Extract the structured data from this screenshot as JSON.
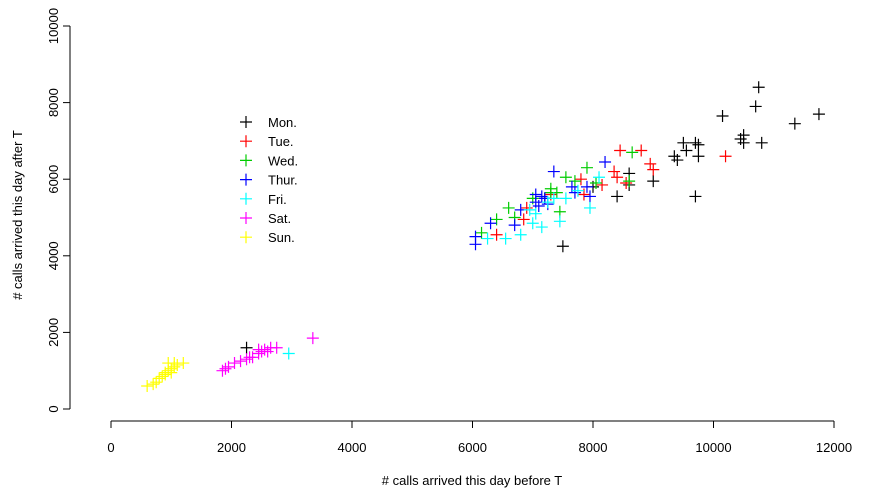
{
  "chart_data": {
    "type": "scatter",
    "marker": "plus",
    "xlabel": "# calls arrived this day before T",
    "ylabel": "# calls arrived this day after T",
    "xlim": [
      0,
      12000
    ],
    "ylim": [
      0,
      10000
    ],
    "x_ticks": [
      "0",
      "2000",
      "4000",
      "6000",
      "8000",
      "10000",
      "12000"
    ],
    "y_ticks": [
      "0",
      "2000",
      "4000",
      "6000",
      "8000",
      "10000"
    ],
    "grid": false,
    "legend_placement": "upper-left",
    "series": [
      {
        "name": "Mon.",
        "color": "#000000",
        "points": [
          [
            10750,
            8400
          ],
          [
            10700,
            7900
          ],
          [
            10150,
            7650
          ],
          [
            11750,
            7700
          ],
          [
            11350,
            7450
          ],
          [
            10500,
            7150
          ],
          [
            10450,
            7050
          ],
          [
            10500,
            6950
          ],
          [
            10800,
            6950
          ],
          [
            9500,
            6950
          ],
          [
            9700,
            6950
          ],
          [
            9750,
            6900
          ],
          [
            9550,
            6750
          ],
          [
            9750,
            6600
          ],
          [
            9350,
            6600
          ],
          [
            9400,
            6500
          ],
          [
            8600,
            6150
          ],
          [
            8600,
            5850
          ],
          [
            9000,
            5950
          ],
          [
            8400,
            5550
          ],
          [
            9700,
            5550
          ],
          [
            8000,
            5800
          ],
          [
            7200,
            5500
          ],
          [
            7500,
            4250
          ],
          [
            2250,
            1600
          ]
        ]
      },
      {
        "name": "Tue.",
        "color": "#ff0000",
        "points": [
          [
            8450,
            6750
          ],
          [
            8800,
            6750
          ],
          [
            8950,
            6400
          ],
          [
            9000,
            6250
          ],
          [
            10200,
            6600
          ],
          [
            8350,
            6200
          ],
          [
            8400,
            6050
          ],
          [
            7800,
            6000
          ],
          [
            8150,
            5850
          ],
          [
            7850,
            5600
          ],
          [
            7300,
            5600
          ],
          [
            6900,
            5250
          ],
          [
            6850,
            4950
          ],
          [
            6400,
            4550
          ],
          [
            8550,
            5900
          ]
        ]
      },
      {
        "name": "Wed.",
        "color": "#00cc00",
        "points": [
          [
            8650,
            6700
          ],
          [
            7900,
            6300
          ],
          [
            7550,
            6050
          ],
          [
            7700,
            5950
          ],
          [
            8050,
            5900
          ],
          [
            8600,
            5950
          ],
          [
            7400,
            5650
          ],
          [
            7300,
            5650
          ],
          [
            7000,
            5500
          ],
          [
            6600,
            5250
          ],
          [
            7450,
            5150
          ],
          [
            6700,
            5000
          ],
          [
            6400,
            4950
          ],
          [
            6150,
            4600
          ],
          [
            7300,
            5750
          ]
        ]
      },
      {
        "name": "Thur.",
        "color": "#0000ff",
        "points": [
          [
            8200,
            6450
          ],
          [
            7350,
            6200
          ],
          [
            7650,
            5800
          ],
          [
            7900,
            5800
          ],
          [
            7700,
            5650
          ],
          [
            7050,
            5600
          ],
          [
            7150,
            5550
          ],
          [
            7200,
            5500
          ],
          [
            7050,
            5400
          ],
          [
            7250,
            5350
          ],
          [
            6800,
            5200
          ],
          [
            6700,
            4800
          ],
          [
            6300,
            4850
          ],
          [
            6050,
            4500
          ],
          [
            6050,
            4300
          ],
          [
            7100,
            5300
          ],
          [
            7950,
            5550
          ]
        ]
      },
      {
        "name": "Fri.",
        "color": "#00ffff",
        "points": [
          [
            8100,
            6050
          ],
          [
            7750,
            5700
          ],
          [
            7550,
            5500
          ],
          [
            7350,
            5500
          ],
          [
            7250,
            5400
          ],
          [
            6950,
            5200
          ],
          [
            7050,
            5100
          ],
          [
            7450,
            4900
          ],
          [
            7000,
            4850
          ],
          [
            7150,
            4750
          ],
          [
            7950,
            5250
          ],
          [
            6550,
            4450
          ],
          [
            6800,
            4550
          ],
          [
            6250,
            4450
          ],
          [
            2950,
            1450
          ]
        ]
      },
      {
        "name": "Sat.",
        "color": "#ff00ff",
        "points": [
          [
            3350,
            1850
          ],
          [
            2750,
            1600
          ],
          [
            2650,
            1600
          ],
          [
            2550,
            1550
          ],
          [
            2500,
            1500
          ],
          [
            2450,
            1450
          ],
          [
            2350,
            1350
          ],
          [
            2300,
            1350
          ],
          [
            2150,
            1250
          ],
          [
            2050,
            1200
          ],
          [
            1950,
            1100
          ],
          [
            1900,
            1050
          ],
          [
            1850,
            1000
          ],
          [
            2450,
            1550
          ],
          [
            2600,
            1500
          ],
          [
            2250,
            1300
          ]
        ]
      },
      {
        "name": "Sun.",
        "color": "#ffff00",
        "points": [
          [
            1200,
            1200
          ],
          [
            1100,
            1150
          ],
          [
            1050,
            1100
          ],
          [
            1000,
            1050
          ],
          [
            950,
            1000
          ],
          [
            900,
            950
          ],
          [
            900,
            900
          ],
          [
            850,
            850
          ],
          [
            800,
            800
          ],
          [
            750,
            700
          ],
          [
            700,
            650
          ],
          [
            600,
            600
          ],
          [
            950,
            1200
          ],
          [
            1000,
            950
          ],
          [
            1050,
            1200
          ]
        ]
      }
    ]
  }
}
